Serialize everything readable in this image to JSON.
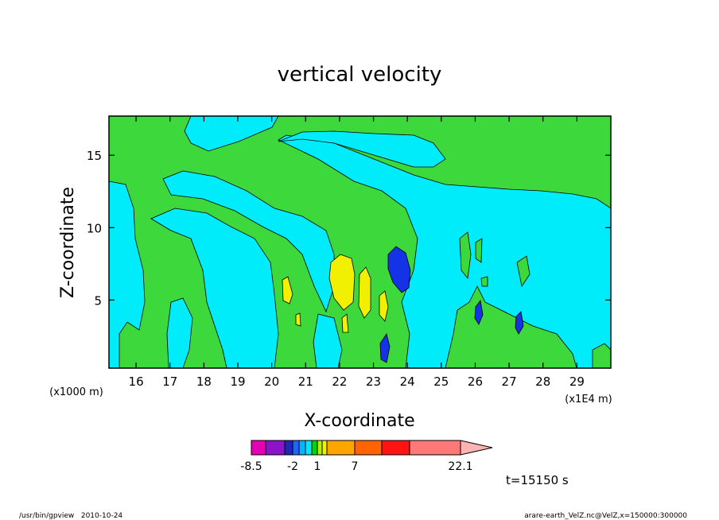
{
  "chart_data": {
    "type": "heatmap",
    "title": "vertical velocity",
    "xlabel": "X-coordinate",
    "ylabel": "Z-coordinate",
    "x_unit": "(x1E4 m)",
    "y_unit": "(x1000 m)",
    "x_ticks": [
      "16",
      "17",
      "18",
      "19",
      "20",
      "21",
      "22",
      "23",
      "24",
      "25",
      "26",
      "27",
      "28",
      "29"
    ],
    "y_ticks": [
      "5",
      "10",
      "15"
    ],
    "xlim": [
      15.2,
      30.0
    ],
    "ylim": [
      0.3,
      17.7
    ],
    "colorbar": {
      "labels": [
        "-8.5",
        "-2",
        "1",
        "7",
        "22.1"
      ],
      "colors": [
        "#e600b4",
        "#8c14c8",
        "#1e28b4",
        "#1e64ff",
        "#00b4ff",
        "#00e6ff",
        "#00d700",
        "#b4f000",
        "#f0f000",
        "#ffa500",
        "#ff6400",
        "#ff1414",
        "#ff7878",
        "#ffb4b4"
      ]
    },
    "time_label": "t=15150 s",
    "footer_left": "/usr/bin/gpview   2010-10-24",
    "footer_right": "arare-earth_VelZ.nc@VelZ,x=150000:300000",
    "note": "Contour-filled field: cyan (~-1..0) and green (~0..1) dominate; yellow updrafts near x=20-23, blue downdrafts near x=23-24 and 26-27 (km*1E4)."
  },
  "colors": {
    "cyan": "#00ecfa",
    "green": "#3cd83c",
    "yellow": "#f0f000",
    "blue": "#1432e6",
    "lightblue": "#1e64ff"
  }
}
